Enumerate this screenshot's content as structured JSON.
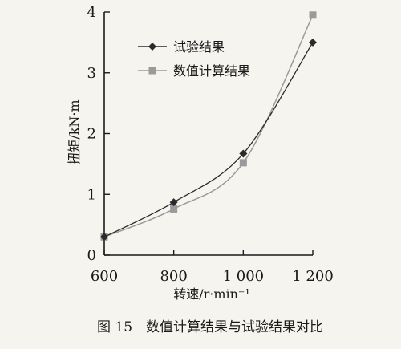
{
  "chart_data": {
    "type": "line",
    "x": [
      600,
      800,
      1000,
      1200
    ],
    "xlim": [
      600,
      1200
    ],
    "ylim": [
      0,
      4
    ],
    "xticks": [
      600,
      800,
      1000,
      1200
    ],
    "yticks": [
      0,
      1,
      2,
      3,
      4
    ],
    "xtick_labels": [
      "600",
      "800",
      "1 000",
      "1 200"
    ],
    "ytick_labels": [
      "0",
      "1",
      "2",
      "3",
      "4"
    ],
    "xlabel": "转速/r·min⁻¹",
    "ylabel": "扭矩/kN·m",
    "grid": false,
    "legend_position": "top-left",
    "series": [
      {
        "name": "试验结果",
        "marker": "diamond",
        "color": "#2a2a2a",
        "values": [
          0.3,
          0.87,
          1.67,
          3.5
        ]
      },
      {
        "name": "数值计算结果",
        "marker": "square",
        "color": "#9a9a9a",
        "values": [
          0.3,
          0.76,
          1.52,
          3.95
        ]
      }
    ]
  },
  "caption": "图 15　数值计算结果与试验结果对比"
}
